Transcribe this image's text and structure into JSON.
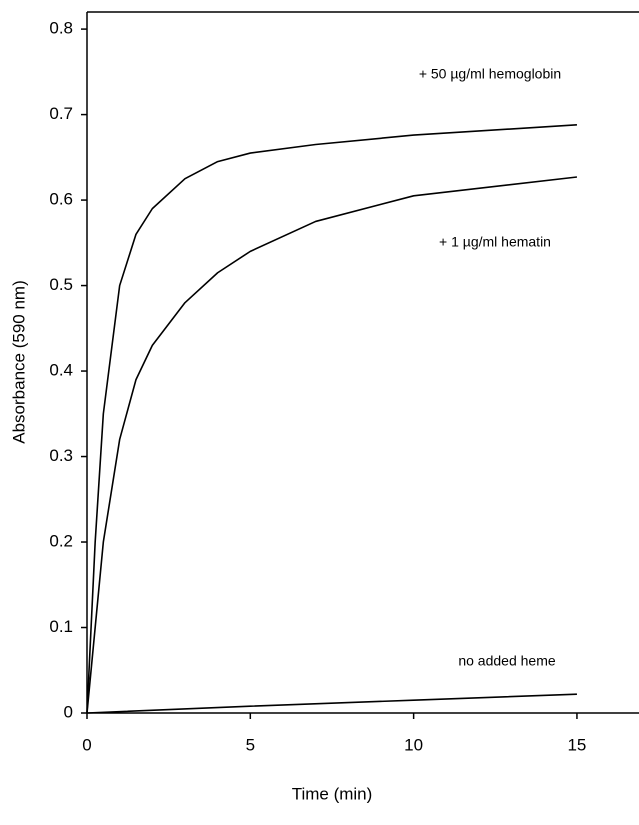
{
  "chart_data": {
    "type": "line",
    "xlabel": "Time (min)",
    "ylabel": "Absorbance (590 nm)",
    "xlim": [
      0,
      16.9
    ],
    "xticks": [
      0,
      5,
      10,
      15
    ],
    "ylim": [
      0,
      0.82
    ],
    "yticks": [
      0,
      0.1,
      0.2,
      0.3,
      0.4,
      0.5,
      0.6,
      0.7,
      0.8
    ],
    "series": [
      {
        "name": "+ 50 µg/ml hemoglobin",
        "color": "#000000",
        "x": [
          0,
          0.25,
          0.5,
          1,
          1.5,
          2,
          3,
          4,
          5,
          7,
          10,
          15
        ],
        "values": [
          0,
          0.2,
          0.35,
          0.5,
          0.56,
          0.59,
          0.625,
          0.645,
          0.655,
          0.665,
          0.676,
          0.688
        ]
      },
      {
        "name": "+ 1 µg/ml hematin",
        "color": "#000000",
        "x": [
          0,
          0.25,
          0.5,
          1,
          1.5,
          2,
          3,
          4,
          5,
          7,
          10,
          15
        ],
        "values": [
          0,
          0.1,
          0.2,
          0.32,
          0.39,
          0.43,
          0.48,
          0.515,
          0.54,
          0.575,
          0.605,
          0.627
        ]
      },
      {
        "name": "no added heme",
        "color": "#000000",
        "x": [
          0,
          5,
          10,
          15
        ],
        "values": [
          0,
          0.008,
          0.015,
          0.022
        ]
      }
    ]
  }
}
